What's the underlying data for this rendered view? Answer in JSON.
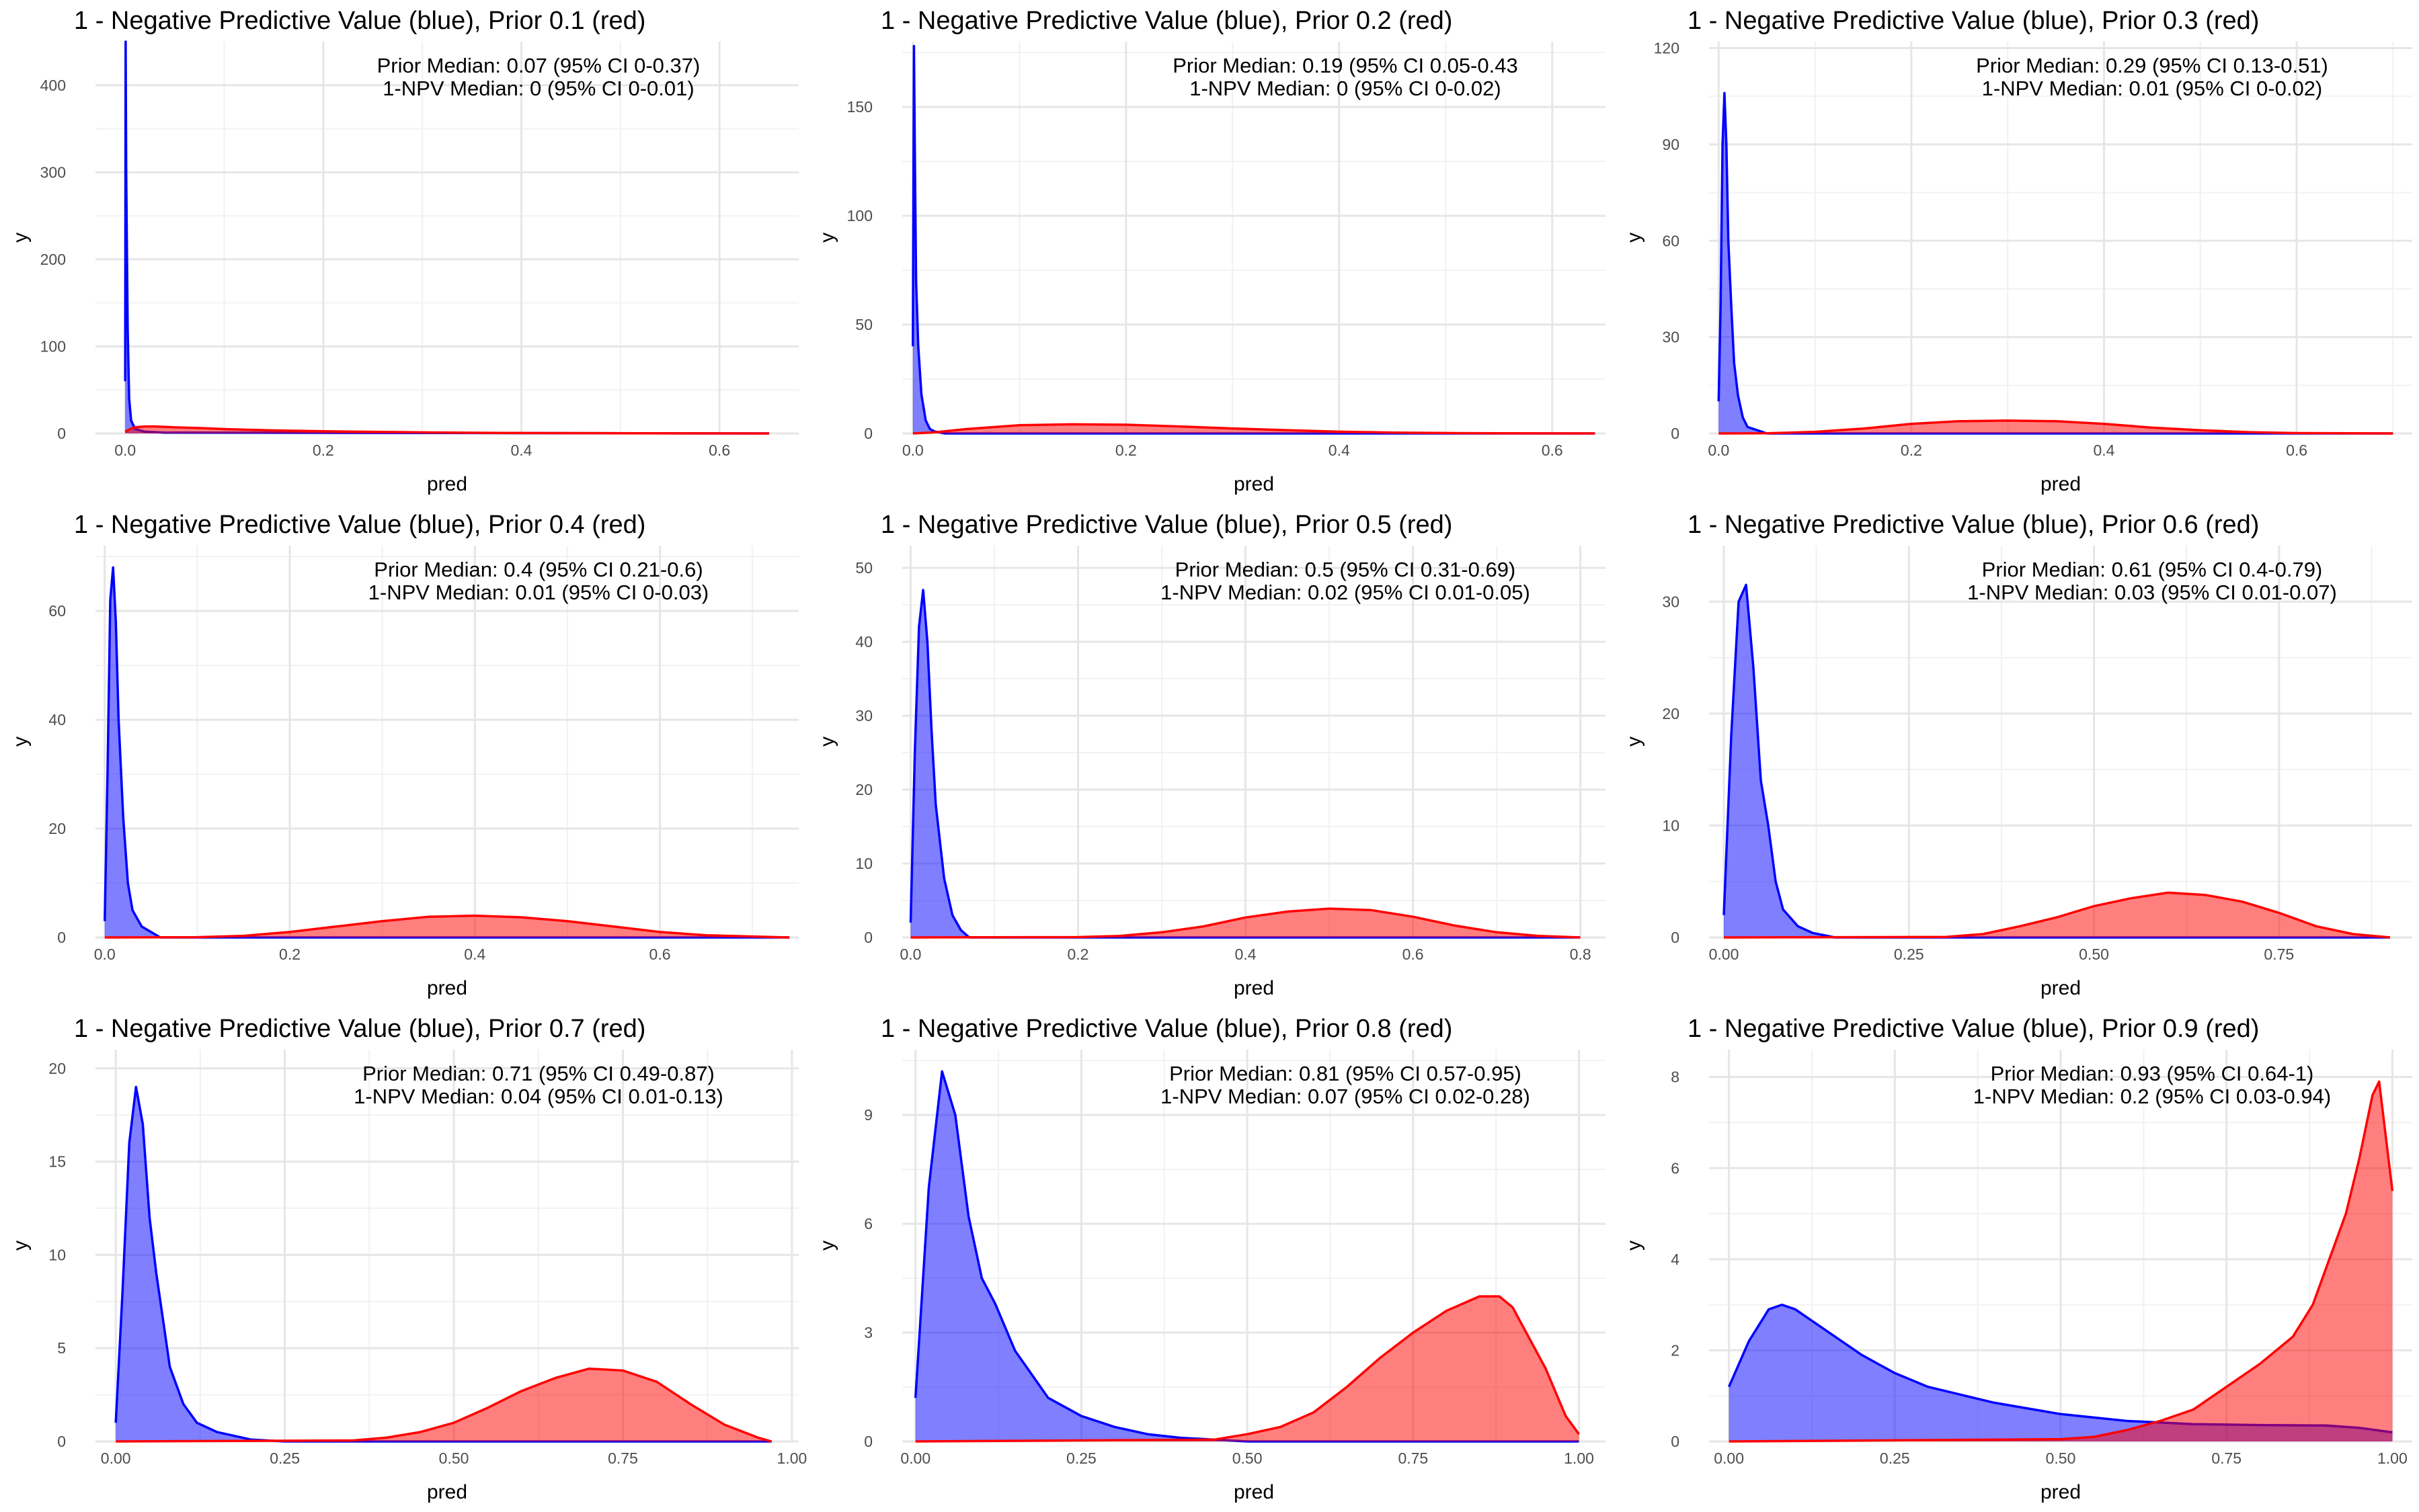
{
  "chart_data": [
    {
      "type": "area",
      "title": "1 - Negative Predictive Value (blue), Prior 0.1 (red)",
      "xlabel": "pred",
      "ylabel": "y",
      "xticks": [
        0.0,
        0.2,
        0.4,
        0.6
      ],
      "xtick_labels": [
        "0.0",
        "0.2",
        "0.4",
        "0.6"
      ],
      "yticks": [
        0,
        100,
        200,
        300,
        400
      ],
      "ytick_labels": [
        "0",
        "100",
        "200",
        "300",
        "400"
      ],
      "xlim": [
        -0.03,
        0.68
      ],
      "ylim": [
        0,
        450
      ],
      "annotation": [
        "Prior Median: 0.07 (95% CI 0-0.37)",
        "1-NPV Median: 0 (95% CI 0-0.01)"
      ],
      "series": [
        {
          "color": "#0000ff",
          "x": [
            0,
            0.0005,
            0.001,
            0.0025,
            0.004,
            0.006,
            0.01,
            0.02,
            0.04,
            0.65
          ],
          "y": [
            60,
            450,
            300,
            120,
            40,
            15,
            5,
            2,
            1,
            0
          ]
        },
        {
          "color": "#ff0000",
          "x": [
            0,
            0.005,
            0.01,
            0.02,
            0.03,
            0.05,
            0.08,
            0.1,
            0.15,
            0.2,
            0.3,
            0.4,
            0.5,
            0.65
          ],
          "y": [
            2,
            5,
            7,
            8,
            8,
            7,
            6,
            5,
            3.5,
            2.5,
            1.2,
            0.5,
            0.2,
            0
          ]
        }
      ]
    },
    {
      "type": "area",
      "title": "1 - Negative Predictive Value (blue), Prior 0.2 (red)",
      "xlabel": "pred",
      "ylabel": "y",
      "xticks": [
        0.0,
        0.2,
        0.4,
        0.6
      ],
      "xtick_labels": [
        "0.0",
        "0.2",
        "0.4",
        "0.6"
      ],
      "yticks": [
        0,
        50,
        100,
        150
      ],
      "ytick_labels": [
        "0",
        "50",
        "100",
        "150"
      ],
      "xlim": [
        -0.01,
        0.65
      ],
      "ylim": [
        0,
        180
      ],
      "annotation": [
        "Prior Median: 0.19 (95% CI 0.05-0.43",
        "1-NPV Median: 0 (95% CI 0-0.02)"
      ],
      "series": [
        {
          "color": "#0000ff",
          "x": [
            0,
            0.001,
            0.002,
            0.003,
            0.005,
            0.008,
            0.012,
            0.016,
            0.02,
            0.03,
            0.64
          ],
          "y": [
            40,
            178,
            120,
            70,
            40,
            18,
            6,
            2,
            1,
            0,
            0
          ]
        },
        {
          "color": "#ff0000",
          "x": [
            0,
            0.02,
            0.05,
            0.1,
            0.15,
            0.2,
            0.25,
            0.3,
            0.35,
            0.4,
            0.45,
            0.5,
            0.55,
            0.64
          ],
          "y": [
            0,
            0.5,
            2,
            3.8,
            4.2,
            4,
            3.2,
            2.3,
            1.5,
            0.8,
            0.4,
            0.2,
            0.05,
            0
          ]
        }
      ]
    },
    {
      "type": "area",
      "title": "1 - Negative Predictive Value (blue), Prior 0.3 (red)",
      "xlabel": "pred",
      "ylabel": "y",
      "xticks": [
        0.0,
        0.2,
        0.4,
        0.6
      ],
      "xtick_labels": [
        "0.0",
        "0.2",
        "0.4",
        "0.6"
      ],
      "yticks": [
        0,
        30,
        60,
        90,
        120
      ],
      "ytick_labels": [
        "0",
        "30",
        "60",
        "90",
        "120"
      ],
      "xlim": [
        -0.01,
        0.72
      ],
      "ylim": [
        0,
        122
      ],
      "annotation": [
        "Prior Median: 0.29 (95% CI 0.13-0.51)",
        "1-NPV Median: 0.01 (95% CI 0-0.02)"
      ],
      "series": [
        {
          "color": "#0000ff",
          "x": [
            0,
            0.002,
            0.004,
            0.006,
            0.008,
            0.01,
            0.013,
            0.016,
            0.02,
            0.025,
            0.03,
            0.04,
            0.05,
            0.7
          ],
          "y": [
            10,
            40,
            90,
            106,
            90,
            60,
            40,
            22,
            12,
            5,
            2,
            1,
            0,
            0
          ]
        },
        {
          "color": "#ff0000",
          "x": [
            0,
            0.05,
            0.1,
            0.15,
            0.2,
            0.25,
            0.3,
            0.35,
            0.4,
            0.45,
            0.5,
            0.55,
            0.6,
            0.7
          ],
          "y": [
            0,
            0.05,
            0.5,
            1.5,
            3,
            3.8,
            4,
            3.8,
            3,
            1.8,
            1,
            0.4,
            0.1,
            0
          ]
        }
      ]
    },
    {
      "type": "area",
      "title": "1 - Negative Predictive Value (blue), Prior 0.4 (red)",
      "xlabel": "pred",
      "ylabel": "y",
      "xticks": [
        0.0,
        0.2,
        0.4,
        0.6
      ],
      "xtick_labels": [
        "0.0",
        "0.2",
        "0.4",
        "0.6"
      ],
      "yticks": [
        0,
        20,
        40,
        60
      ],
      "ytick_labels": [
        "0",
        "20",
        "40",
        "60"
      ],
      "xlim": [
        -0.01,
        0.75
      ],
      "ylim": [
        0,
        72
      ],
      "annotation": [
        "Prior Median: 0.4 (95% CI 0.21-0.6)",
        "1-NPV Median: 0.01 (95% CI 0-0.03)"
      ],
      "series": [
        {
          "color": "#0000ff",
          "x": [
            0,
            0.003,
            0.006,
            0.009,
            0.012,
            0.015,
            0.02,
            0.025,
            0.03,
            0.04,
            0.05,
            0.06,
            0.74
          ],
          "y": [
            3,
            30,
            62,
            68,
            58,
            40,
            22,
            10,
            5,
            2,
            1,
            0,
            0
          ]
        },
        {
          "color": "#ff0000",
          "x": [
            0,
            0.1,
            0.15,
            0.2,
            0.25,
            0.3,
            0.35,
            0.4,
            0.45,
            0.5,
            0.55,
            0.6,
            0.65,
            0.74
          ],
          "y": [
            0,
            0.05,
            0.3,
            1,
            2,
            3,
            3.8,
            4,
            3.7,
            3,
            2,
            1,
            0.4,
            0
          ]
        }
      ]
    },
    {
      "type": "area",
      "title": "1 - Negative Predictive Value (blue), Prior 0.5 (red)",
      "xlabel": "pred",
      "ylabel": "y",
      "xticks": [
        0.0,
        0.2,
        0.4,
        0.6,
        0.8
      ],
      "xtick_labels": [
        "0.0",
        "0.2",
        "0.4",
        "0.6",
        "0.8"
      ],
      "yticks": [
        0,
        10,
        20,
        30,
        40,
        50
      ],
      "ytick_labels": [
        "0",
        "10",
        "20",
        "30",
        "40",
        "50"
      ],
      "xlim": [
        -0.01,
        0.83
      ],
      "ylim": [
        0,
        53
      ],
      "annotation": [
        "Prior Median: 0.5 (95% CI 0.31-0.69)",
        "1-NPV Median: 0.02 (95% CI 0.01-0.05)"
      ],
      "series": [
        {
          "color": "#0000ff",
          "x": [
            0,
            0.005,
            0.01,
            0.015,
            0.02,
            0.025,
            0.03,
            0.04,
            0.05,
            0.06,
            0.07,
            0.8
          ],
          "y": [
            2,
            25,
            42,
            47,
            40,
            28,
            18,
            8,
            3,
            1,
            0,
            0
          ]
        },
        {
          "color": "#ff0000",
          "x": [
            0,
            0.2,
            0.25,
            0.3,
            0.35,
            0.4,
            0.45,
            0.5,
            0.55,
            0.6,
            0.65,
            0.7,
            0.75,
            0.8
          ],
          "y": [
            0,
            0.05,
            0.2,
            0.7,
            1.5,
            2.7,
            3.5,
            3.9,
            3.7,
            2.8,
            1.6,
            0.7,
            0.2,
            0
          ]
        }
      ]
    },
    {
      "type": "area",
      "title": "1 - Negative Predictive Value (blue), Prior 0.6 (red)",
      "xlabel": "pred",
      "ylabel": "y",
      "xticks": [
        0.0,
        0.25,
        0.5,
        0.75
      ],
      "xtick_labels": [
        "0.00",
        "0.25",
        "0.50",
        "0.75"
      ],
      "yticks": [
        0,
        10,
        20,
        30
      ],
      "ytick_labels": [
        "0",
        "10",
        "20",
        "30"
      ],
      "xlim": [
        -0.02,
        0.93
      ],
      "ylim": [
        0,
        35
      ],
      "annotation": [
        "Prior Median: 0.61 (95% CI 0.4-0.79)",
        "1-NPV Median: 0.03 (95% CI 0.01-0.07)"
      ],
      "series": [
        {
          "color": "#0000ff",
          "x": [
            0,
            0.01,
            0.02,
            0.03,
            0.04,
            0.05,
            0.06,
            0.07,
            0.08,
            0.1,
            0.12,
            0.15,
            0.9
          ],
          "y": [
            2,
            18,
            30,
            31.5,
            24,
            14,
            10,
            5,
            2.5,
            1,
            0.4,
            0,
            0
          ]
        },
        {
          "color": "#ff0000",
          "x": [
            0,
            0.3,
            0.35,
            0.4,
            0.45,
            0.5,
            0.55,
            0.6,
            0.65,
            0.7,
            0.75,
            0.8,
            0.85,
            0.9
          ],
          "y": [
            0,
            0.05,
            0.3,
            1,
            1.8,
            2.8,
            3.5,
            4,
            3.8,
            3.2,
            2.2,
            1,
            0.3,
            0
          ]
        }
      ]
    },
    {
      "type": "area",
      "title": "1 - Negative Predictive Value (blue), Prior 0.7 (red)",
      "xlabel": "pred",
      "ylabel": "y",
      "xticks": [
        0.0,
        0.25,
        0.5,
        0.75,
        1.0
      ],
      "xtick_labels": [
        "0.00",
        "0.25",
        "0.50",
        "0.75",
        "1.00"
      ],
      "yticks": [
        0,
        5,
        10,
        15,
        20
      ],
      "ytick_labels": [
        "0",
        "5",
        "10",
        "15",
        "20"
      ],
      "xlim": [
        -0.03,
        1.01
      ],
      "ylim": [
        0,
        21
      ],
      "annotation": [
        "Prior Median: 0.71 (95% CI 0.49-0.87)",
        "1-NPV Median: 0.04 (95% CI 0.01-0.13)"
      ],
      "series": [
        {
          "color": "#0000ff",
          "x": [
            0,
            0.01,
            0.02,
            0.03,
            0.04,
            0.05,
            0.06,
            0.07,
            0.08,
            0.1,
            0.12,
            0.15,
            0.2,
            0.25,
            0.97
          ],
          "y": [
            1,
            8,
            16,
            19,
            17,
            12,
            9,
            6.5,
            4,
            2,
            1,
            0.5,
            0.1,
            0,
            0
          ]
        },
        {
          "color": "#ff0000",
          "x": [
            0,
            0.35,
            0.4,
            0.45,
            0.5,
            0.55,
            0.6,
            0.65,
            0.7,
            0.75,
            0.8,
            0.85,
            0.9,
            0.95,
            0.97
          ],
          "y": [
            0,
            0.05,
            0.2,
            0.5,
            1,
            1.8,
            2.7,
            3.4,
            3.9,
            3.8,
            3.2,
            2,
            0.9,
            0.2,
            0
          ]
        }
      ]
    },
    {
      "type": "area",
      "title": "1 - Negative Predictive Value (blue), Prior 0.8 (red)",
      "xlabel": "pred",
      "ylabel": "y",
      "xticks": [
        0.0,
        0.25,
        0.5,
        0.75,
        1.0
      ],
      "xtick_labels": [
        "0.00",
        "0.25",
        "0.50",
        "0.75",
        "1.00"
      ],
      "yticks": [
        0,
        3,
        6,
        9
      ],
      "ytick_labels": [
        "0",
        "3",
        "6",
        "9"
      ],
      "xlim": [
        -0.02,
        1.04
      ],
      "ylim": [
        0,
        10.8
      ],
      "annotation": [
        "Prior Median: 0.81 (95% CI 0.57-0.95)",
        "1-NPV Median: 0.07 (95% CI 0.02-0.28)"
      ],
      "series": [
        {
          "color": "#0000ff",
          "x": [
            0,
            0.02,
            0.04,
            0.06,
            0.08,
            0.1,
            0.12,
            0.15,
            0.2,
            0.25,
            0.3,
            0.35,
            0.4,
            0.5,
            1.0
          ],
          "y": [
            1.2,
            7,
            10.2,
            9,
            6.2,
            4.5,
            3.8,
            2.5,
            1.2,
            0.7,
            0.4,
            0.2,
            0.1,
            0,
            0
          ]
        },
        {
          "color": "#ff0000",
          "x": [
            0,
            0.45,
            0.5,
            0.55,
            0.6,
            0.65,
            0.7,
            0.75,
            0.8,
            0.85,
            0.88,
            0.9,
            0.95,
            0.98,
            1.0
          ],
          "y": [
            0,
            0.05,
            0.2,
            0.4,
            0.8,
            1.5,
            2.3,
            3,
            3.6,
            4,
            4,
            3.7,
            2,
            0.7,
            0.2
          ]
        }
      ]
    },
    {
      "type": "area",
      "title": "1 - Negative Predictive Value (blue), Prior 0.9 (red)",
      "xlabel": "pred",
      "ylabel": "y",
      "xticks": [
        0.0,
        0.25,
        0.5,
        0.75,
        1.0
      ],
      "xtick_labels": [
        "0.00",
        "0.25",
        "0.50",
        "0.75",
        "1.00"
      ],
      "yticks": [
        0,
        2,
        4,
        6,
        8
      ],
      "ytick_labels": [
        "0",
        "2",
        "4",
        "6",
        "8"
      ],
      "xlim": [
        -0.03,
        1.03
      ],
      "ylim": [
        0,
        8.6
      ],
      "annotation": [
        "Prior Median: 0.93 (95% CI 0.64-1)",
        "1-NPV Median: 0.2 (95% CI 0.03-0.94)"
      ],
      "series": [
        {
          "color": "#0000ff",
          "x": [
            0,
            0.03,
            0.06,
            0.08,
            0.1,
            0.15,
            0.2,
            0.25,
            0.3,
            0.4,
            0.5,
            0.6,
            0.7,
            0.8,
            0.9,
            0.95,
            1.0
          ],
          "y": [
            1.2,
            2.2,
            2.9,
            3,
            2.9,
            2.4,
            1.9,
            1.5,
            1.2,
            0.85,
            0.6,
            0.45,
            0.38,
            0.36,
            0.35,
            0.3,
            0.2
          ]
        },
        {
          "color": "#ff0000",
          "x": [
            0,
            0.5,
            0.55,
            0.6,
            0.65,
            0.7,
            0.75,
            0.8,
            0.85,
            0.88,
            0.9,
            0.93,
            0.95,
            0.97,
            0.98,
            1.0
          ],
          "y": [
            0,
            0.05,
            0.1,
            0.25,
            0.45,
            0.7,
            1.2,
            1.7,
            2.3,
            3,
            3.8,
            5,
            6.2,
            7.6,
            7.9,
            5.5
          ]
        }
      ]
    }
  ]
}
